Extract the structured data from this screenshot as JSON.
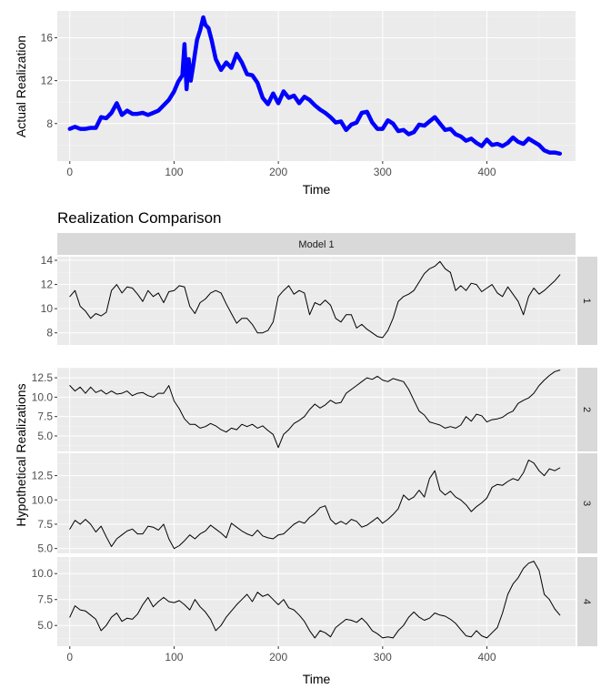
{
  "chart_data": [
    {
      "type": "line",
      "title": "",
      "xlabel": "Time",
      "ylabel": "Actual Realization",
      "xlim": [
        0,
        470
      ],
      "ylim": [
        4.5,
        18.5
      ],
      "xticks": [
        0,
        100,
        200,
        300,
        400
      ],
      "yticks": [
        8,
        12,
        16
      ],
      "grid": true,
      "color": "#0000FF",
      "series": [
        {
          "x": [
            0,
            5,
            10,
            15,
            20,
            25,
            30,
            35,
            40,
            45,
            50,
            55,
            60,
            65,
            70,
            75,
            80,
            85,
            90,
            95,
            100,
            104,
            108,
            110,
            112,
            114,
            116,
            118,
            120,
            122,
            125,
            128,
            130,
            133,
            136,
            140,
            145,
            150,
            155,
            160,
            165,
            170,
            175,
            180,
            185,
            190,
            195,
            200,
            205,
            210,
            215,
            220,
            225,
            230,
            235,
            240,
            245,
            250,
            255,
            260,
            265,
            270,
            275,
            280,
            285,
            290,
            295,
            300,
            305,
            310,
            315,
            320,
            325,
            330,
            335,
            340,
            345,
            350,
            355,
            360,
            365,
            370,
            375,
            380,
            385,
            390,
            395,
            400,
            405,
            410,
            415,
            420,
            425,
            430,
            435,
            440,
            445,
            450,
            455,
            460,
            465,
            470
          ],
          "y": [
            7.5,
            7.7,
            7.5,
            7.5,
            7.6,
            7.6,
            8.6,
            8.5,
            9.0,
            9.9,
            8.8,
            9.2,
            8.9,
            8.9,
            9.0,
            8.8,
            9.0,
            9.2,
            9.7,
            10.2,
            11.0,
            11.9,
            12.5,
            15.4,
            11.2,
            14.0,
            12.0,
            13.2,
            14.5,
            15.8,
            16.7,
            17.9,
            17.2,
            16.9,
            15.8,
            14.0,
            13.0,
            13.7,
            13.2,
            14.5,
            13.7,
            12.6,
            12.5,
            11.8,
            10.4,
            9.8,
            10.8,
            9.9,
            11.0,
            10.4,
            10.6,
            9.9,
            10.5,
            10.2,
            9.7,
            9.3,
            9.0,
            8.6,
            8.1,
            8.2,
            7.4,
            7.9,
            8.1,
            9.0,
            9.1,
            8.1,
            7.5,
            7.5,
            8.3,
            8.0,
            7.3,
            7.4,
            7.0,
            7.2,
            7.9,
            7.8,
            8.2,
            8.6,
            8.0,
            7.4,
            7.5,
            7.0,
            6.8,
            6.4,
            6.6,
            6.2,
            5.9,
            6.5,
            6.0,
            6.1,
            5.9,
            6.2,
            6.7,
            6.3,
            6.1,
            6.6,
            6.3,
            6.0,
            5.5,
            5.3,
            5.3,
            5.2
          ]
        }
      ]
    },
    {
      "type": "line",
      "title": "Realization Comparison",
      "strip_top": "Model 1",
      "xlabel": "Time",
      "ylabel": "Hypothetical Realizations",
      "xlim": [
        0,
        470
      ],
      "xticks": [
        0,
        100,
        200,
        300,
        400
      ],
      "grid": true,
      "color": "#000000",
      "panels": [
        {
          "strip": "1",
          "ylim": [
            7.0,
            14.3
          ],
          "yticks": [
            8,
            10,
            12,
            14
          ],
          "x": [
            0,
            5,
            10,
            15,
            20,
            25,
            30,
            35,
            40,
            45,
            50,
            55,
            60,
            65,
            70,
            75,
            80,
            85,
            90,
            95,
            100,
            105,
            110,
            115,
            120,
            125,
            130,
            135,
            140,
            145,
            150,
            155,
            160,
            165,
            170,
            175,
            180,
            185,
            190,
            195,
            200,
            205,
            210,
            215,
            220,
            225,
            230,
            235,
            240,
            245,
            250,
            255,
            260,
            265,
            270,
            275,
            280,
            285,
            290,
            295,
            300,
            305,
            310,
            315,
            320,
            325,
            330,
            335,
            340,
            345,
            350,
            355,
            360,
            365,
            370,
            375,
            380,
            385,
            390,
            395,
            400,
            405,
            410,
            415,
            420,
            425,
            430,
            435,
            440,
            445,
            450,
            455,
            460,
            465,
            470
          ],
          "y": [
            11.0,
            11.5,
            10.2,
            9.8,
            9.2,
            9.6,
            9.4,
            9.7,
            11.5,
            12.0,
            11.3,
            11.8,
            11.7,
            11.2,
            10.6,
            11.5,
            11.0,
            11.3,
            10.5,
            11.4,
            11.5,
            11.9,
            11.8,
            10.2,
            9.6,
            10.5,
            10.8,
            11.3,
            11.5,
            11.3,
            10.4,
            9.6,
            8.8,
            9.2,
            9.2,
            8.7,
            8.0,
            8.0,
            8.2,
            8.9,
            11.0,
            11.5,
            11.9,
            11.2,
            11.5,
            11.3,
            9.5,
            10.5,
            10.3,
            10.7,
            10.3,
            9.2,
            8.9,
            9.5,
            9.5,
            8.4,
            8.7,
            8.3,
            8.0,
            7.7,
            7.6,
            8.2,
            9.2,
            10.6,
            11.0,
            11.2,
            11.5,
            12.2,
            12.9,
            13.3,
            13.5,
            13.9,
            13.3,
            13.0,
            11.5,
            11.9,
            11.5,
            12.1,
            12.0,
            11.4,
            11.7,
            12.0,
            11.3,
            11.0,
            11.8,
            11.2,
            10.6,
            9.5,
            11.0,
            11.7,
            11.2,
            11.5,
            11.9,
            12.3,
            12.8
          ]
        },
        {
          "strip": "2",
          "ylim": [
            3.0,
            13.8
          ],
          "yticks": [
            5.0,
            7.5,
            10.0,
            12.5
          ],
          "x": [
            0,
            5,
            10,
            15,
            20,
            25,
            30,
            35,
            40,
            45,
            50,
            55,
            60,
            65,
            70,
            75,
            80,
            85,
            90,
            95,
            100,
            105,
            110,
            115,
            120,
            125,
            130,
            135,
            140,
            145,
            150,
            155,
            160,
            165,
            170,
            175,
            180,
            185,
            190,
            195,
            200,
            205,
            210,
            215,
            220,
            225,
            230,
            235,
            240,
            245,
            250,
            255,
            260,
            265,
            270,
            275,
            280,
            285,
            290,
            295,
            300,
            305,
            310,
            315,
            320,
            325,
            330,
            335,
            340,
            345,
            350,
            355,
            360,
            365,
            370,
            375,
            380,
            385,
            390,
            395,
            400,
            405,
            410,
            415,
            420,
            425,
            430,
            435,
            440,
            445,
            450,
            455,
            460,
            465,
            470
          ],
          "y": [
            11.5,
            10.8,
            11.3,
            10.5,
            11.3,
            10.6,
            10.9,
            10.4,
            10.8,
            10.4,
            10.5,
            10.8,
            10.2,
            10.5,
            10.6,
            10.2,
            10.0,
            10.5,
            10.5,
            11.5,
            9.5,
            8.5,
            7.2,
            6.5,
            6.5,
            6.0,
            6.2,
            6.6,
            6.3,
            5.8,
            5.5,
            6.0,
            5.8,
            6.5,
            6.2,
            6.5,
            6.0,
            6.3,
            5.7,
            5.2,
            3.5,
            5.2,
            5.8,
            6.6,
            7.0,
            7.5,
            8.4,
            9.1,
            8.6,
            9.0,
            9.6,
            9.2,
            9.3,
            10.5,
            11.0,
            11.5,
            12.0,
            12.5,
            12.3,
            12.7,
            12.2,
            12.0,
            12.4,
            12.2,
            12.0,
            11.0,
            9.6,
            8.2,
            7.7,
            6.8,
            6.6,
            6.4,
            6.0,
            6.2,
            6.0,
            6.4,
            7.5,
            6.9,
            7.8,
            7.6,
            6.8,
            7.1,
            7.2,
            7.4,
            7.9,
            8.2,
            9.2,
            9.6,
            9.9,
            10.5,
            11.5,
            12.2,
            12.8,
            13.3,
            13.5
          ]
        },
        {
          "strip": "3",
          "ylim": [
            4.5,
            14.8
          ],
          "yticks": [
            5.0,
            7.5,
            10.0,
            12.5
          ],
          "x": [
            0,
            5,
            10,
            15,
            20,
            25,
            30,
            35,
            40,
            45,
            50,
            55,
            60,
            65,
            70,
            75,
            80,
            85,
            90,
            95,
            100,
            105,
            110,
            115,
            120,
            125,
            130,
            135,
            140,
            145,
            150,
            155,
            160,
            165,
            170,
            175,
            180,
            185,
            190,
            195,
            200,
            205,
            210,
            215,
            220,
            225,
            230,
            235,
            240,
            245,
            250,
            255,
            260,
            265,
            270,
            275,
            280,
            285,
            290,
            295,
            300,
            305,
            310,
            315,
            320,
            325,
            330,
            335,
            340,
            345,
            350,
            355,
            360,
            365,
            370,
            375,
            380,
            385,
            390,
            395,
            400,
            405,
            410,
            415,
            420,
            425,
            430,
            435,
            440,
            445,
            450,
            455,
            460,
            465,
            470
          ],
          "y": [
            7.0,
            7.9,
            7.5,
            8.0,
            7.5,
            6.7,
            7.3,
            6.2,
            5.2,
            6.0,
            6.4,
            6.8,
            7.0,
            6.5,
            6.5,
            7.3,
            7.2,
            6.9,
            7.5,
            6.0,
            5.0,
            5.3,
            5.8,
            6.4,
            6.0,
            6.5,
            6.8,
            7.4,
            7.0,
            6.6,
            6.1,
            7.6,
            7.2,
            6.8,
            6.5,
            6.3,
            6.9,
            6.3,
            6.1,
            6.0,
            6.4,
            6.5,
            7.0,
            7.5,
            7.8,
            7.6,
            8.2,
            8.6,
            9.2,
            9.4,
            8.0,
            7.5,
            7.8,
            7.5,
            8.0,
            7.8,
            7.2,
            7.4,
            7.8,
            8.2,
            7.6,
            8.0,
            8.5,
            9.1,
            10.5,
            10.0,
            10.3,
            11.0,
            10.3,
            12.2,
            13.0,
            11.0,
            10.5,
            10.9,
            10.3,
            10.0,
            9.5,
            8.8,
            9.3,
            9.7,
            10.2,
            11.3,
            11.6,
            11.5,
            11.9,
            12.2,
            12.0,
            12.8,
            14.1,
            13.8,
            13.0,
            12.5,
            13.2,
            13.0,
            13.3
          ]
        },
        {
          "strip": "4",
          "ylim": [
            3.0,
            11.6
          ],
          "yticks": [
            5.0,
            7.5,
            10.0
          ],
          "x": [
            0,
            5,
            10,
            15,
            20,
            25,
            30,
            35,
            40,
            45,
            50,
            55,
            60,
            65,
            70,
            75,
            80,
            85,
            90,
            95,
            100,
            105,
            110,
            115,
            120,
            125,
            130,
            135,
            140,
            145,
            150,
            155,
            160,
            165,
            170,
            175,
            180,
            185,
            190,
            195,
            200,
            205,
            210,
            215,
            220,
            225,
            230,
            235,
            240,
            245,
            250,
            255,
            260,
            265,
            270,
            275,
            280,
            285,
            290,
            295,
            300,
            305,
            310,
            315,
            320,
            325,
            330,
            335,
            340,
            345,
            350,
            355,
            360,
            365,
            370,
            375,
            380,
            385,
            390,
            395,
            400,
            405,
            410,
            415,
            420,
            425,
            430,
            435,
            440,
            445,
            450,
            455,
            460,
            465,
            470
          ],
          "y": [
            5.8,
            6.9,
            6.5,
            6.4,
            6.0,
            5.6,
            4.5,
            5.0,
            5.8,
            6.2,
            5.4,
            5.7,
            5.6,
            6.1,
            7.0,
            7.7,
            6.8,
            7.3,
            7.7,
            7.3,
            7.2,
            7.4,
            7.0,
            6.5,
            7.5,
            6.8,
            6.3,
            5.6,
            4.5,
            5.0,
            5.8,
            6.4,
            7.0,
            7.5,
            8.0,
            7.3,
            8.2,
            7.8,
            8.0,
            7.5,
            7.0,
            7.5,
            6.7,
            6.5,
            6.0,
            5.4,
            4.5,
            3.8,
            4.5,
            4.3,
            3.9,
            4.8,
            5.2,
            5.6,
            5.5,
            5.3,
            5.7,
            5.2,
            4.5,
            4.2,
            3.8,
            3.9,
            3.8,
            4.5,
            5.0,
            5.8,
            6.3,
            5.8,
            5.5,
            5.7,
            6.2,
            6.0,
            5.9,
            5.6,
            5.2,
            4.6,
            4.0,
            3.9,
            4.5,
            4.0,
            3.8,
            4.3,
            4.8,
            6.2,
            8.0,
            9.0,
            9.6,
            10.5,
            11.0,
            11.2,
            10.3,
            8.0,
            7.5,
            6.6,
            6.0
          ]
        }
      ]
    }
  ]
}
